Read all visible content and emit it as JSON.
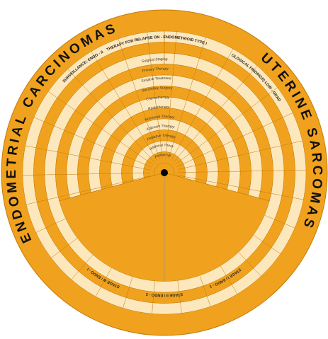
{
  "title_left": "ENDOMETRIAL CARCINOMAS",
  "title_right": "UTERINE SARCOMAS",
  "header_segments": [
    "SURVEILLANCE: ENDO - II",
    "THERAPY FOR RELAPSE",
    "NON - ENDOMETRIOID TYPE II",
    "(PATHOLOGICAL FINDINGS) LOW - GRADE ESS"
  ],
  "bottom_segments": [
    "STAGE III / ENDO - I",
    "STAGE II / ENDO - 2",
    "STAGE I / ENDO - 1"
  ],
  "rings": [
    "Surgical Staging",
    "Primary Therapy",
    "Surgical Treatment",
    "Secondary Surgery",
    "Chemotherapy",
    "Radiotherapy",
    "Hormonal Therapy",
    "Adjuvant Therapy",
    "Palliative Therapy",
    "Additional Therapy",
    "Follow-up"
  ]
}
